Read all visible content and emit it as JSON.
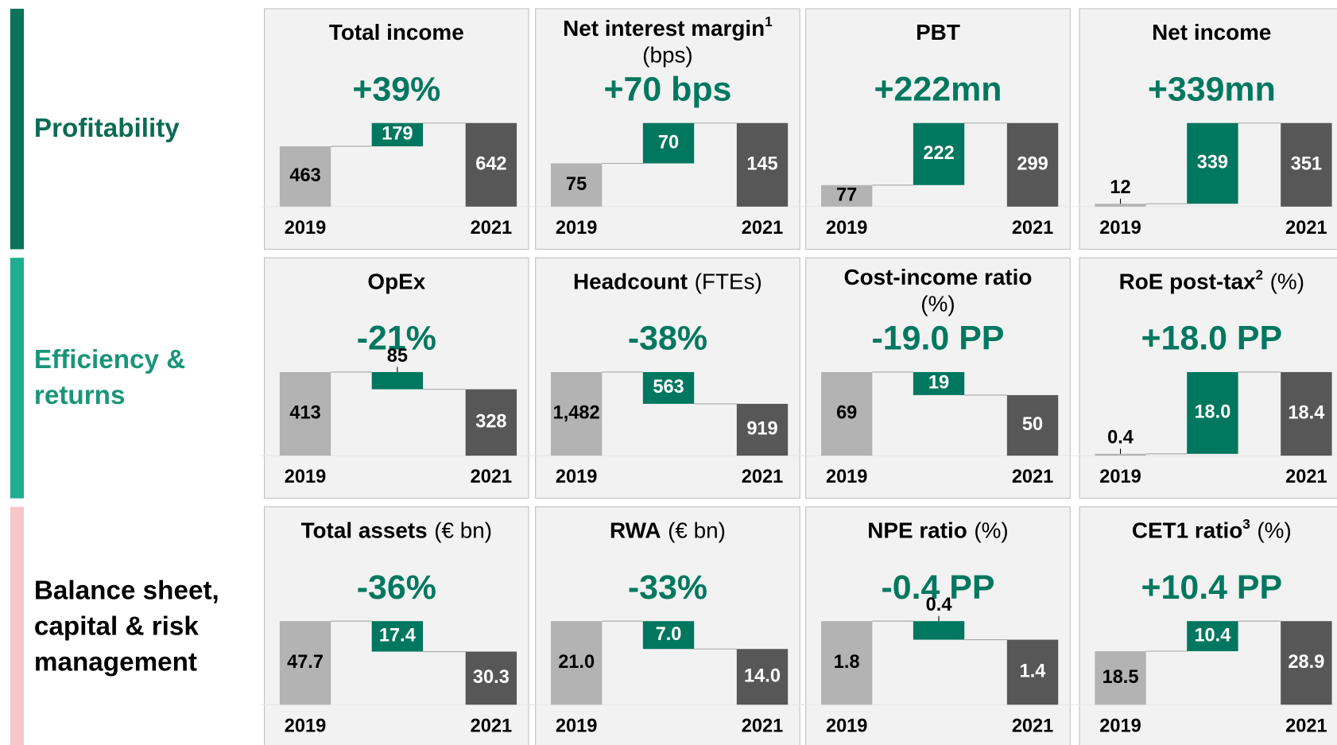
{
  "sections": [
    {
      "lines": [
        "Profitability"
      ],
      "color": "#0b7359",
      "text_color": "#0b6b55"
    },
    {
      "lines": [
        "Efficiency &",
        "returns"
      ],
      "color": "#1fae8e",
      "text_color": "#1a9579"
    },
    {
      "lines": [
        "Balance sheet,",
        "capital & risk",
        "management"
      ],
      "color": "#f6c6c8",
      "text_color": "#000000"
    }
  ],
  "chart_data": [
    {
      "type": "waterfall",
      "title": "Total income",
      "headline": "+39%",
      "categories": [
        "2019",
        null,
        "2021"
      ],
      "values": [
        463,
        179,
        642
      ],
      "value_labels": [
        "463",
        "179",
        "642"
      ],
      "colors": [
        "#b3b3b3",
        "#00775f",
        "#575757"
      ],
      "ylim": [
        0,
        642
      ]
    },
    {
      "type": "waterfall",
      "title": "Net interest margin",
      "footnote": "1",
      "unit": "(bps)",
      "headline": "+70 bps",
      "categories": [
        "2019",
        null,
        "2021"
      ],
      "values": [
        75,
        70,
        145
      ],
      "value_labels": [
        "75",
        "70",
        "145"
      ],
      "colors": [
        "#b3b3b3",
        "#00775f",
        "#575757"
      ],
      "ylim": [
        0,
        145
      ]
    },
    {
      "type": "waterfall",
      "title": "PBT",
      "headline": "+222mn",
      "categories": [
        "2019",
        null,
        "2021"
      ],
      "values": [
        77,
        222,
        299
      ],
      "value_labels": [
        "77",
        "222",
        "299"
      ],
      "colors": [
        "#b3b3b3",
        "#00775f",
        "#575757"
      ],
      "ylim": [
        0,
        299
      ]
    },
    {
      "type": "waterfall",
      "title": "Net income",
      "headline": "+339mn",
      "categories": [
        "2019",
        null,
        "2021"
      ],
      "values": [
        12,
        339,
        351
      ],
      "value_labels": [
        "12",
        "339",
        "351"
      ],
      "colors": [
        "#b3b3b3",
        "#00775f",
        "#575757"
      ],
      "ylim": [
        0,
        351
      ]
    },
    {
      "type": "waterfall",
      "title": "OpEx",
      "headline": "-21%",
      "categories": [
        "2019",
        null,
        "2021"
      ],
      "values": [
        413,
        -85,
        328
      ],
      "value_labels": [
        "413",
        "85",
        "328"
      ],
      "colors": [
        "#b3b3b3",
        "#00775f",
        "#575757"
      ],
      "ylim": [
        0,
        413
      ]
    },
    {
      "type": "waterfall",
      "title": "Headcount",
      "unit": "(FTEs)",
      "headline": "-38%",
      "categories": [
        "2019",
        null,
        "2021"
      ],
      "values": [
        1482,
        -563,
        919
      ],
      "value_labels": [
        "1,482",
        "563",
        "919"
      ],
      "colors": [
        "#b3b3b3",
        "#00775f",
        "#575757"
      ],
      "ylim": [
        0,
        1482
      ]
    },
    {
      "type": "waterfall",
      "title": "Cost-income ratio",
      "unit": "(%)",
      "headline": "-19.0 PP",
      "categories": [
        "2019",
        null,
        "2021"
      ],
      "values": [
        69,
        -19,
        50
      ],
      "value_labels": [
        "69",
        "19",
        "50"
      ],
      "colors": [
        "#b3b3b3",
        "#00775f",
        "#575757"
      ],
      "ylim": [
        0,
        69
      ]
    },
    {
      "type": "waterfall",
      "title": "RoE post-tax",
      "footnote": "2",
      "unit": "(%)",
      "headline": "+18.0 PP",
      "categories": [
        "2019",
        null,
        "2021"
      ],
      "values": [
        0.4,
        18.0,
        18.4
      ],
      "value_labels": [
        "0.4",
        "18.0",
        "18.4"
      ],
      "colors": [
        "#b3b3b3",
        "#00775f",
        "#575757"
      ],
      "ylim": [
        0,
        18.4
      ]
    },
    {
      "type": "waterfall",
      "title": "Total assets",
      "unit": "(€ bn)",
      "headline": "-36%",
      "categories": [
        "2019",
        null,
        "2021"
      ],
      "values": [
        47.7,
        -17.4,
        30.3
      ],
      "value_labels": [
        "47.7",
        "17.4",
        "30.3"
      ],
      "colors": [
        "#b3b3b3",
        "#00775f",
        "#575757"
      ],
      "ylim": [
        0,
        47.7
      ]
    },
    {
      "type": "waterfall",
      "title": "RWA",
      "unit": "(€ bn)",
      "headline": "-33%",
      "categories": [
        "2019",
        null,
        "2021"
      ],
      "values": [
        21.0,
        -7.0,
        14.0
      ],
      "value_labels": [
        "21.0",
        "7.0",
        "14.0"
      ],
      "colors": [
        "#b3b3b3",
        "#00775f",
        "#575757"
      ],
      "ylim": [
        0,
        21.0
      ]
    },
    {
      "type": "waterfall",
      "title": "NPE ratio",
      "unit": "(%)",
      "headline": "-0.4 PP",
      "categories": [
        "2019",
        null,
        "2021"
      ],
      "values": [
        1.8,
        -0.4,
        1.4
      ],
      "value_labels": [
        "1.8",
        "0.4",
        "1.4"
      ],
      "colors": [
        "#b3b3b3",
        "#00775f",
        "#575757"
      ],
      "ylim": [
        0,
        1.8
      ]
    },
    {
      "type": "waterfall",
      "title": "CET1 ratio",
      "footnote": "3",
      "unit": "(%)",
      "headline": "+10.4 PP",
      "categories": [
        "2019",
        null,
        "2021"
      ],
      "values": [
        18.5,
        10.4,
        28.9
      ],
      "value_labels": [
        "18.5",
        "10.4",
        "28.9"
      ],
      "colors": [
        "#b3b3b3",
        "#00775f",
        "#575757"
      ],
      "ylim": [
        0,
        28.9
      ]
    }
  ]
}
